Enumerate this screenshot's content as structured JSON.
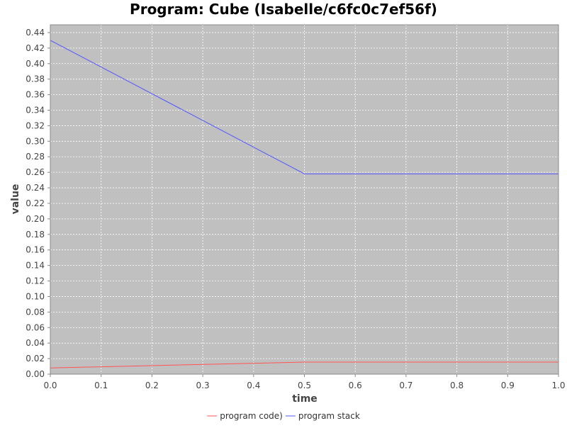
{
  "chart_data": {
    "type": "line",
    "title": "Program: Cube (Isabelle/c6fc0c7ef56f)",
    "xlabel": "time",
    "ylabel": "value",
    "xlim": [
      0.0,
      1.0
    ],
    "ylim": [
      0.0,
      0.45
    ],
    "x_ticks": [
      "0.0",
      "0.1",
      "0.2",
      "0.3",
      "0.4",
      "0.5",
      "0.6",
      "0.7",
      "0.8",
      "0.9",
      "1.0"
    ],
    "y_ticks": [
      "0.00",
      "0.02",
      "0.04",
      "0.06",
      "0.08",
      "0.10",
      "0.12",
      "0.14",
      "0.16",
      "0.18",
      "0.20",
      "0.22",
      "0.24",
      "0.26",
      "0.28",
      "0.30",
      "0.32",
      "0.34",
      "0.36",
      "0.38",
      "0.40",
      "0.42",
      "0.44"
    ],
    "grid": true,
    "legend_position": "bottom",
    "background_color": "#c0c0c0",
    "series": [
      {
        "name": "program code)",
        "color": "#ff5555",
        "x": [
          0.0,
          0.5,
          1.0
        ],
        "y": [
          0.008,
          0.0155,
          0.0155
        ]
      },
      {
        "name": "program stack",
        "color": "#5555ff",
        "x": [
          0.0,
          0.5,
          1.0
        ],
        "y": [
          0.43,
          0.258,
          0.258
        ]
      }
    ]
  }
}
